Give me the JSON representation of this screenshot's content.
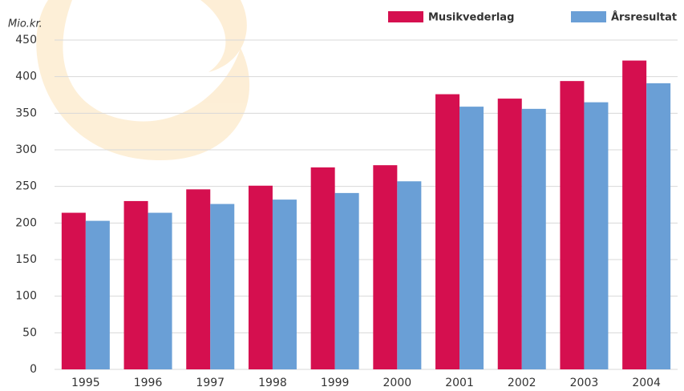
{
  "chart_data": {
    "type": "bar",
    "y_label": "Mio.kr.",
    "categories": [
      "1995",
      "1996",
      "1997",
      "1998",
      "1999",
      "2000",
      "2001",
      "2002",
      "2003",
      "2004"
    ],
    "series": [
      {
        "name": "Musikvederlag",
        "color": "#d50f4f",
        "values": [
          214,
          230,
          246,
          251,
          276,
          279,
          376,
          370,
          394,
          422
        ]
      },
      {
        "name": "Årsresultat",
        "color": "#6a9fd6",
        "values": [
          203,
          214,
          226,
          232,
          241,
          257,
          359,
          356,
          365,
          391
        ]
      }
    ],
    "ylim": [
      0,
      450
    ],
    "yticks": [
      0,
      50,
      100,
      150,
      200,
      250,
      300,
      350,
      400,
      450
    ],
    "grid": true,
    "legend": "top-right"
  }
}
